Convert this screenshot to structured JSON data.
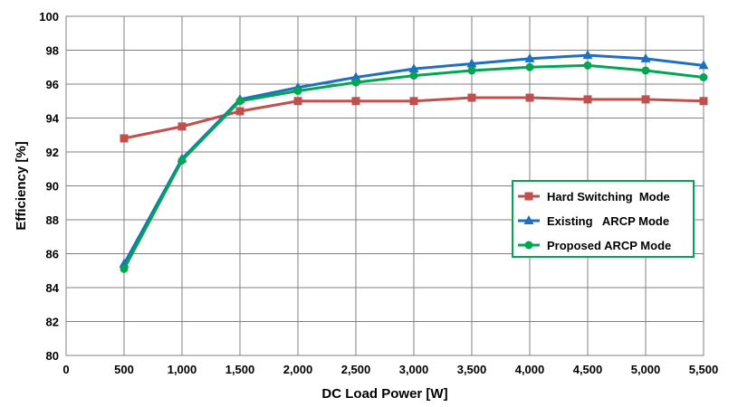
{
  "chart_data": {
    "type": "line",
    "title": "",
    "xlabel": "DC Load Power [W]",
    "ylabel": "Efficiency [%]",
    "xlim": [
      0,
      5500
    ],
    "ylim": [
      80,
      100
    ],
    "x_ticks": [
      0,
      500,
      1000,
      1500,
      2000,
      2500,
      3000,
      3500,
      4000,
      4500,
      5000,
      5500
    ],
    "x_tick_labels": [
      "0",
      "500",
      "1,000",
      "1,500",
      "2,000",
      "2,500",
      "3,000",
      "3,500",
      "4,000",
      "4,500",
      "5,000",
      "5,500"
    ],
    "y_ticks": [
      80,
      82,
      84,
      86,
      88,
      90,
      92,
      94,
      96,
      98,
      100
    ],
    "y_tick_labels": [
      "80",
      "82",
      "84",
      "86",
      "88",
      "90",
      "92",
      "94",
      "96",
      "98",
      "100"
    ],
    "grid": true,
    "legend_position": "right",
    "x": [
      500,
      1000,
      1500,
      2000,
      2500,
      3000,
      3500,
      4000,
      4500,
      5000,
      5500
    ],
    "series": [
      {
        "name": "Hard Switching  Mode",
        "color": "#c0504d",
        "marker": "square",
        "values": [
          92.8,
          93.5,
          94.4,
          95.0,
          95.0,
          95.0,
          95.2,
          95.2,
          95.1,
          95.1,
          95.0
        ]
      },
      {
        "name": "Existing   ARCP Mode",
        "color": "#1f6fbf",
        "marker": "triangle",
        "values": [
          85.4,
          91.6,
          95.1,
          95.8,
          96.4,
          96.9,
          97.2,
          97.5,
          97.7,
          97.5,
          97.1
        ]
      },
      {
        "name": "Proposed ARCP Mode",
        "color": "#00a651",
        "marker": "circle",
        "values": [
          85.1,
          91.5,
          95.0,
          95.6,
          96.1,
          96.5,
          96.8,
          97.0,
          97.1,
          96.8,
          96.4
        ]
      }
    ],
    "legend_border_color": "#00a651"
  }
}
